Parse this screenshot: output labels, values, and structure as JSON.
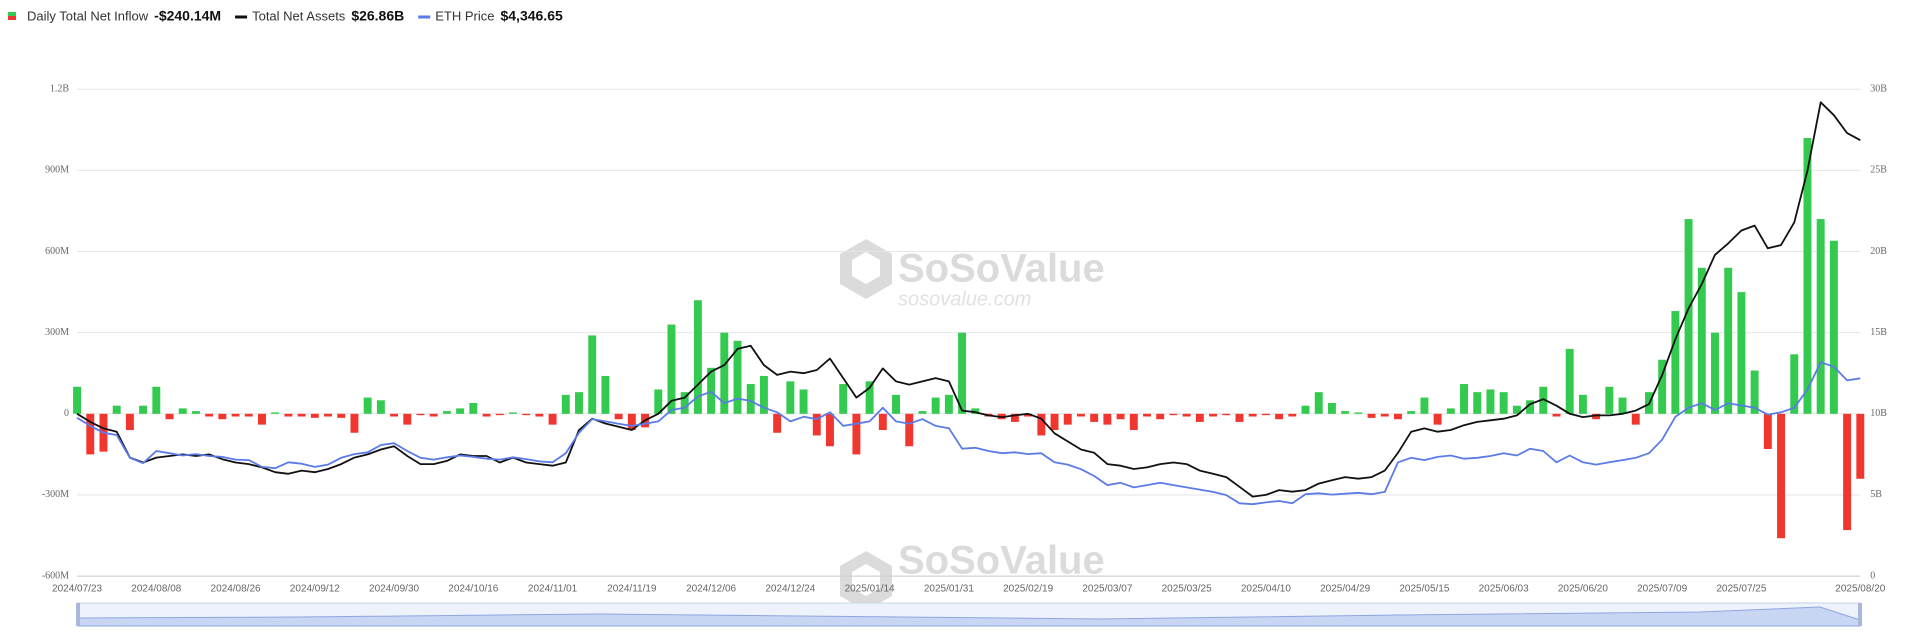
{
  "chart_data": {
    "type": "bar-line",
    "watermark": "SoSoValue",
    "watermark_url": "sosovalue.com",
    "categories": [
      "2024/07/23",
      null,
      null,
      null,
      null,
      null,
      "2024/08/08",
      null,
      null,
      null,
      null,
      null,
      "2024/08/26",
      null,
      null,
      null,
      null,
      null,
      "2024/09/12",
      null,
      null,
      null,
      null,
      null,
      "2024/09/30",
      null,
      null,
      null,
      null,
      null,
      "2024/10/16",
      null,
      null,
      null,
      null,
      null,
      "2024/11/01",
      null,
      null,
      null,
      null,
      null,
      "2024/11/19",
      null,
      null,
      null,
      null,
      null,
      "2024/12/06",
      null,
      null,
      null,
      null,
      null,
      "2024/12/24",
      null,
      null,
      null,
      null,
      null,
      "2025/01/14",
      null,
      null,
      null,
      null,
      null,
      "2025/01/31",
      null,
      null,
      null,
      null,
      null,
      "2025/02/19",
      null,
      null,
      null,
      null,
      null,
      "2025/03/07",
      null,
      null,
      null,
      null,
      null,
      "2025/03/25",
      null,
      null,
      null,
      null,
      null,
      "2025/04/10",
      null,
      null,
      null,
      null,
      null,
      "2025/04/29",
      null,
      null,
      null,
      null,
      null,
      "2025/05/15",
      null,
      null,
      null,
      null,
      null,
      "2025/06/03",
      null,
      null,
      null,
      null,
      null,
      "2025/06/20",
      null,
      null,
      null,
      null,
      null,
      "2025/07/09",
      null,
      null,
      null,
      null,
      null,
      "2025/07/25",
      null,
      null,
      null,
      null,
      null,
      null,
      null,
      null,
      "2025/08/20"
    ],
    "series": [
      {
        "name": "Daily Total Net Inflow",
        "legend_value": "-$240.14M",
        "type": "bar",
        "axis": "y",
        "color": "#34c94f",
        "negative_color": "#f0362e",
        "values": [
          100,
          -150,
          -140,
          30,
          -60,
          30,
          100,
          -20,
          20,
          10,
          -10,
          -20,
          -10,
          -10,
          -40,
          5,
          -10,
          -10,
          -15,
          -10,
          -15,
          -70,
          60,
          50,
          -10,
          -40,
          -5,
          -10,
          10,
          20,
          40,
          -10,
          -5,
          5,
          -5,
          -10,
          -40,
          70,
          80,
          290,
          140,
          -20,
          -60,
          -50,
          90,
          330,
          80,
          420,
          170,
          300,
          270,
          110,
          140,
          -70,
          120,
          90,
          -80,
          -120,
          110,
          -150,
          120,
          -60,
          70,
          -120,
          10,
          60,
          70,
          300,
          20,
          -10,
          -20,
          -30,
          -10,
          -80,
          -60,
          -40,
          -10,
          -30,
          -40,
          -20,
          -60,
          -10,
          -20,
          -5,
          -10,
          -30,
          -10,
          -5,
          -30,
          -10,
          -5,
          -20,
          -10,
          30,
          80,
          40,
          10,
          5,
          -15,
          -10,
          -20,
          10,
          60,
          -40,
          20,
          110,
          80,
          90,
          80,
          30,
          50,
          100,
          -10,
          240,
          70,
          -20,
          100,
          60,
          -40,
          80,
          200,
          380,
          720,
          540,
          300,
          540,
          450,
          160,
          -130,
          -460,
          220,
          1020,
          720,
          640,
          -430,
          -240.14
        ]
      },
      {
        "name": "Total Net Assets",
        "legend_value": "$26.86B",
        "type": "line",
        "axis": "y2",
        "color": "#111111",
        "values": [
          10.0,
          9.5,
          9.1,
          8.9,
          7.3,
          7.0,
          7.3,
          7.4,
          7.5,
          7.4,
          7.5,
          7.2,
          7.0,
          6.9,
          6.7,
          6.4,
          6.3,
          6.5,
          6.4,
          6.6,
          6.9,
          7.3,
          7.5,
          7.8,
          8.0,
          7.4,
          6.9,
          6.9,
          7.1,
          7.5,
          7.4,
          7.4,
          7.0,
          7.3,
          7.0,
          6.9,
          6.8,
          7.0,
          9.0,
          9.7,
          9.4,
          9.2,
          9.0,
          9.6,
          10.0,
          10.8,
          11.0,
          11.8,
          12.6,
          13.0,
          14.0,
          14.2,
          13.0,
          12.4,
          12.6,
          12.5,
          12.7,
          13.4,
          12.2,
          11.0,
          11.6,
          12.8,
          12.0,
          11.8,
          12.0,
          12.2,
          12.0,
          10.2,
          10.1,
          9.9,
          9.8,
          9.9,
          10.0,
          9.7,
          8.8,
          8.3,
          7.8,
          7.6,
          6.9,
          6.8,
          6.6,
          6.7,
          6.9,
          7.0,
          6.9,
          6.5,
          6.3,
          6.1,
          5.5,
          4.9,
          5.0,
          5.3,
          5.2,
          5.3,
          5.7,
          5.9,
          6.1,
          6.0,
          6.1,
          6.5,
          7.6,
          8.9,
          9.1,
          8.9,
          9.0,
          9.3,
          9.5,
          9.6,
          9.7,
          9.9,
          10.6,
          10.9,
          10.5,
          10.0,
          9.8,
          9.9,
          9.9,
          10.0,
          10.2,
          10.6,
          12.4,
          14.6,
          16.5,
          18.0,
          19.8,
          20.5,
          21.3,
          21.6,
          20.2,
          20.4,
          21.8,
          25.0,
          29.2,
          28.4,
          27.3,
          26.86
        ]
      },
      {
        "name": "ETH Price",
        "legend_value": "$4,346.65",
        "type": "line",
        "axis": "y3",
        "color": "#5b7be6",
        "values": [
          3480,
          3300,
          3150,
          3100,
          2600,
          2480,
          2750,
          2700,
          2650,
          2680,
          2640,
          2620,
          2560,
          2550,
          2400,
          2370,
          2500,
          2470,
          2400,
          2450,
          2600,
          2680,
          2720,
          2880,
          2920,
          2750,
          2600,
          2560,
          2610,
          2650,
          2620,
          2580,
          2560,
          2610,
          2570,
          2520,
          2500,
          2700,
          3150,
          3450,
          3400,
          3350,
          3300,
          3350,
          3400,
          3650,
          3700,
          3950,
          4050,
          3800,
          3900,
          3850,
          3700,
          3600,
          3400,
          3500,
          3450,
          3600,
          3300,
          3350,
          3400,
          3700,
          3400,
          3350,
          3450,
          3300,
          3250,
          2800,
          2820,
          2750,
          2700,
          2720,
          2680,
          2700,
          2500,
          2450,
          2350,
          2200,
          2000,
          2050,
          1950,
          2000,
          2050,
          2000,
          1950,
          1900,
          1850,
          1780,
          1600,
          1580,
          1620,
          1650,
          1600,
          1800,
          1820,
          1790,
          1810,
          1830,
          1800,
          1850,
          2500,
          2600,
          2550,
          2620,
          2650,
          2580,
          2600,
          2640,
          2700,
          2650,
          2800,
          2750,
          2500,
          2650,
          2500,
          2450,
          2500,
          2550,
          2600,
          2700,
          3000,
          3500,
          3700,
          3800,
          3650,
          3800,
          3750,
          3700,
          3550,
          3600,
          3700,
          4100,
          4700,
          4600,
          4300,
          4346.65
        ]
      }
    ],
    "ylim": [
      -600,
      1200
    ],
    "yticks": [
      {
        "value": -600,
        "label": "-600M"
      },
      {
        "value": -300,
        "label": "-300M"
      },
      0,
      {
        "value": 300,
        "label": "300M"
      },
      {
        "value": 600,
        "label": "600M"
      },
      {
        "value": 900,
        "label": "900M"
      },
      {
        "value": 1200,
        "label": "1.2B"
      }
    ],
    "y2lim": [
      0,
      30
    ],
    "y2ticks": [
      0,
      {
        "value": 5,
        "label": "5B"
      },
      {
        "value": 10,
        "label": "10B"
      },
      {
        "value": 15,
        "label": "15B"
      },
      {
        "value": 20,
        "label": "20B"
      },
      {
        "value": 25,
        "label": "25B"
      },
      {
        "value": 30,
        "label": "30B"
      }
    ],
    "y3lim": [
      0,
      10700
    ],
    "grid": true
  }
}
